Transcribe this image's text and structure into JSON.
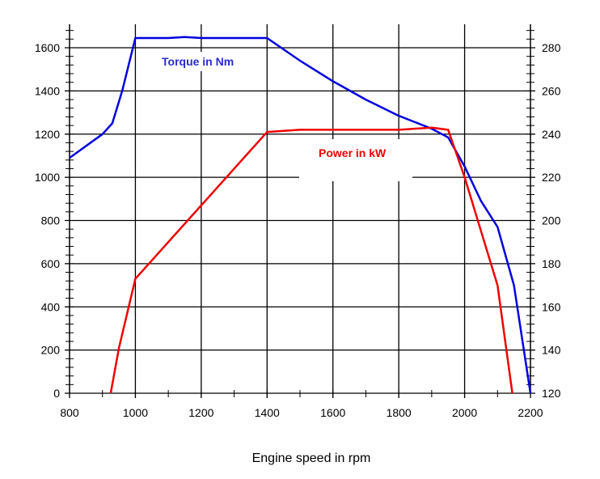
{
  "chart_data": {
    "type": "line",
    "title": "",
    "xlabel": "Engine speed in rpm",
    "xlim": [
      800,
      2200
    ],
    "xticks": [
      800,
      1000,
      1200,
      1400,
      1600,
      1800,
      2000,
      2200
    ],
    "y_left": {
      "label": "",
      "lim": [
        0,
        1600
      ],
      "ticks": [
        0,
        200,
        400,
        600,
        800,
        1000,
        1200,
        1400,
        1600
      ]
    },
    "y_right": {
      "label": "",
      "lim": [
        120,
        280
      ],
      "ticks": [
        120,
        140,
        160,
        180,
        200,
        220,
        240,
        260,
        280
      ]
    },
    "grid": true,
    "series": [
      {
        "name": "Torque in Nm",
        "axis": "left",
        "color": "#0000dd",
        "x": [
          800,
          900,
          930,
          960,
          1000,
          1100,
          1150,
          1200,
          1400,
          1500,
          1600,
          1700,
          1800,
          1900,
          1950,
          2000,
          2050,
          2100,
          2150,
          2200
        ],
        "y": [
          1090,
          1200,
          1250,
          1400,
          1645,
          1645,
          1650,
          1645,
          1645,
          1540,
          1445,
          1360,
          1285,
          1225,
          1185,
          1050,
          890,
          770,
          500,
          0
        ]
      },
      {
        "name": "Power in kW",
        "axis": "right",
        "color": "#ee0000",
        "x": [
          925,
          950,
          1000,
          1100,
          1400,
          1500,
          1800,
          1900,
          1950,
          2000,
          2100,
          2145
        ],
        "y": [
          120,
          141,
          173,
          190,
          241,
          242,
          242,
          243,
          242,
          220,
          170,
          120
        ]
      }
    ]
  }
}
